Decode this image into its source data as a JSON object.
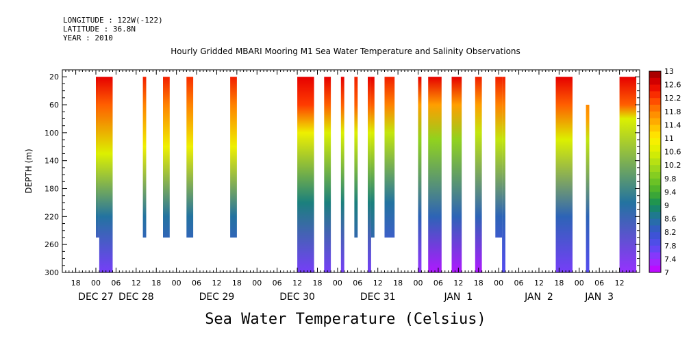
{
  "header": {
    "longitude": "LONGITUDE : 122W(-122)",
    "latitude": "LATITUDE : 36.8N",
    "year": "YEAR : 2010"
  },
  "chart_data": {
    "type": "heatmap",
    "title": "Hourly Gridded MBARI Mooring M1 Sea Water Temperature and Salinity Observations",
    "xlabel": "Sea Water Temperature (Celsius)",
    "ylabel": "DEPTH (m)",
    "x_unit": "hours since DEC 27 00:00",
    "xlim": [
      -10,
      162
    ],
    "ylim": [
      300,
      10
    ],
    "y_ticks": [
      20,
      60,
      100,
      140,
      180,
      220,
      260,
      300
    ],
    "x_hour_ticks": [
      {
        "h": -6,
        "label": "18"
      },
      {
        "h": 0,
        "label": "00"
      },
      {
        "h": 6,
        "label": "06"
      },
      {
        "h": 12,
        "label": "12"
      },
      {
        "h": 18,
        "label": "18"
      },
      {
        "h": 24,
        "label": "00"
      },
      {
        "h": 30,
        "label": "06"
      },
      {
        "h": 36,
        "label": "12"
      },
      {
        "h": 42,
        "label": "18"
      },
      {
        "h": 48,
        "label": "00"
      },
      {
        "h": 54,
        "label": "06"
      },
      {
        "h": 60,
        "label": "12"
      },
      {
        "h": 66,
        "label": "18"
      },
      {
        "h": 72,
        "label": "00"
      },
      {
        "h": 78,
        "label": "06"
      },
      {
        "h": 84,
        "label": "12"
      },
      {
        "h": 90,
        "label": "18"
      },
      {
        "h": 96,
        "label": "00"
      },
      {
        "h": 102,
        "label": "06"
      },
      {
        "h": 108,
        "label": "12"
      },
      {
        "h": 114,
        "label": "18"
      },
      {
        "h": 120,
        "label": "00"
      },
      {
        "h": 126,
        "label": "06"
      },
      {
        "h": 132,
        "label": "12"
      },
      {
        "h": 138,
        "label": "18"
      },
      {
        "h": 144,
        "label": "00"
      },
      {
        "h": 150,
        "label": "06"
      },
      {
        "h": 156,
        "label": "12"
      }
    ],
    "x_date_labels": [
      {
        "h": 0,
        "label": "DEC 27"
      },
      {
        "h": 12,
        "label": "DEC 28"
      },
      {
        "h": 36,
        "label": "DEC 29"
      },
      {
        "h": 60,
        "label": "DEC 30"
      },
      {
        "h": 84,
        "label": "DEC 31"
      },
      {
        "h": 108,
        "label": "JAN  1"
      },
      {
        "h": 132,
        "label": "JAN  2"
      },
      {
        "h": 150,
        "label": "JAN  3"
      }
    ],
    "colorbar": {
      "min": 7,
      "max": 13,
      "step": 0.2,
      "labels": [
        "13",
        "12.6",
        "12.2",
        "11.8",
        "11.4",
        "11",
        "10.6",
        "10.2",
        "9.8",
        "9.4",
        "9",
        "8.6",
        "8.2",
        "7.8",
        "7.4",
        "7"
      ],
      "label_values": [
        13,
        12.6,
        12.2,
        11.8,
        11.4,
        11,
        10.6,
        10.2,
        9.8,
        9.4,
        9,
        8.6,
        8.2,
        7.8,
        7.4,
        7
      ]
    },
    "profile_coverage_note": "depth range of each observed column",
    "columns": [
      {
        "h0": 0,
        "h1": 1,
        "dmax": 250
      },
      {
        "h1": 5,
        "h0": 1,
        "dmax": 300
      },
      {
        "h0": 14,
        "h1": 15,
        "dmax": 250
      },
      {
        "h0": 20,
        "h1": 22,
        "dmax": 250
      },
      {
        "h0": 27,
        "h1": 29,
        "dmax": 250
      },
      {
        "h0": 40,
        "h1": 42,
        "dmax": 250
      },
      {
        "h0": 60,
        "h1": 65,
        "dmax": 300
      },
      {
        "h0": 68,
        "h1": 70,
        "dmax": 300
      },
      {
        "h0": 73,
        "h1": 74,
        "dmax": 300
      },
      {
        "h0": 77,
        "h1": 78,
        "dmax": 250
      },
      {
        "h0": 81,
        "h1": 82,
        "dmax": 300
      },
      {
        "h0": 82,
        "h1": 83,
        "dmax": 250
      },
      {
        "h0": 86,
        "h1": 89,
        "dmax": 250
      },
      {
        "h0": 96,
        "h1": 97,
        "dmax": 300
      },
      {
        "h0": 99,
        "h1": 103,
        "dmax": 300
      },
      {
        "h0": 106,
        "h1": 109,
        "dmax": 300
      },
      {
        "h0": 113,
        "h1": 115,
        "dmax": 300
      },
      {
        "h0": 119,
        "h1": 121,
        "dmax": 250
      },
      {
        "h0": 121,
        "h1": 122,
        "dmax": 300
      },
      {
        "h0": 137,
        "h1": 142,
        "dmax": 300
      },
      {
        "h0": 146,
        "h1": 147,
        "dmin": 60,
        "dmax": 300
      },
      {
        "h0": 156,
        "h1": 161,
        "dmax": 300
      }
    ],
    "column_profiles": [
      {
        "top": 12.6,
        "d1": 60,
        "v1": 12.0,
        "d2": 130,
        "v2": 10.6,
        "d3": 220,
        "v3": 8.6,
        "bot": 7.6
      },
      {
        "top": 12.6,
        "d1": 60,
        "v1": 12.0,
        "d2": 130,
        "v2": 10.6,
        "d3": 220,
        "v3": 8.6,
        "bot": 7.6
      },
      {
        "top": 12.4,
        "d1": 60,
        "v1": 11.8,
        "d2": 120,
        "v2": 10.8,
        "d3": 220,
        "v3": 8.6,
        "bot": 8.0
      },
      {
        "top": 12.4,
        "d1": 60,
        "v1": 11.8,
        "d2": 120,
        "v2": 10.8,
        "d3": 220,
        "v3": 8.6,
        "bot": 8.0
      },
      {
        "top": 12.3,
        "d1": 60,
        "v1": 11.8,
        "d2": 120,
        "v2": 10.8,
        "d3": 220,
        "v3": 8.6,
        "bot": 8.0
      },
      {
        "top": 12.4,
        "d1": 60,
        "v1": 11.8,
        "d2": 120,
        "v2": 10.8,
        "d3": 220,
        "v3": 8.6,
        "bot": 8.0
      },
      {
        "top": 12.6,
        "d1": 60,
        "v1": 12.2,
        "d2": 100,
        "v2": 10.8,
        "d3": 200,
        "v3": 8.8,
        "bot": 7.6
      },
      {
        "top": 12.6,
        "d1": 60,
        "v1": 12.0,
        "d2": 100,
        "v2": 10.6,
        "d3": 200,
        "v3": 8.8,
        "bot": 7.6
      },
      {
        "top": 12.6,
        "d1": 60,
        "v1": 12.0,
        "d2": 100,
        "v2": 10.6,
        "d3": 200,
        "v3": 8.8,
        "bot": 7.6
      },
      {
        "top": 12.4,
        "d1": 60,
        "v1": 12.0,
        "d2": 100,
        "v2": 10.6,
        "d3": 200,
        "v3": 8.8,
        "bot": 8.0
      },
      {
        "top": 12.6,
        "d1": 60,
        "v1": 12.0,
        "d2": 100,
        "v2": 10.6,
        "d3": 200,
        "v3": 8.8,
        "bot": 7.6
      },
      {
        "top": 12.6,
        "d1": 60,
        "v1": 12.0,
        "d2": 100,
        "v2": 10.6,
        "d3": 200,
        "v3": 8.8,
        "bot": 8.0
      },
      {
        "top": 12.4,
        "d1": 60,
        "v1": 11.8,
        "d2": 100,
        "v2": 10.4,
        "d3": 200,
        "v3": 8.6,
        "bot": 7.8
      },
      {
        "top": 12.6,
        "d1": 60,
        "v1": 11.6,
        "d2": 110,
        "v2": 10.0,
        "d3": 220,
        "v3": 8.4,
        "bot": 7.4
      },
      {
        "top": 12.6,
        "d1": 60,
        "v1": 11.6,
        "d2": 110,
        "v2": 10.0,
        "d3": 220,
        "v3": 8.4,
        "bot": 7.2
      },
      {
        "top": 12.6,
        "d1": 60,
        "v1": 11.6,
        "d2": 110,
        "v2": 10.0,
        "d3": 220,
        "v3": 8.4,
        "bot": 7.2
      },
      {
        "top": 12.4,
        "d1": 60,
        "v1": 11.6,
        "d2": 100,
        "v2": 10.4,
        "d3": 220,
        "v3": 8.4,
        "bot": 7.2
      },
      {
        "top": 12.4,
        "d1": 60,
        "v1": 11.8,
        "d2": 110,
        "v2": 10.4,
        "d3": 220,
        "v3": 8.4,
        "bot": 7.8
      },
      {
        "top": 12.4,
        "d1": 60,
        "v1": 11.8,
        "d2": 110,
        "v2": 10.4,
        "d3": 220,
        "v3": 8.4,
        "bot": 7.8
      },
      {
        "top": 12.6,
        "d1": 60,
        "v1": 12.0,
        "d2": 110,
        "v2": 10.6,
        "d3": 220,
        "v3": 8.4,
        "bot": 7.6
      },
      {
        "top": 12.0,
        "d1": 80,
        "v1": 11.6,
        "d2": 110,
        "v2": 10.4,
        "d3": 220,
        "v3": 8.4,
        "bot": 7.8
      },
      {
        "top": 12.6,
        "d1": 60,
        "v1": 12.0,
        "d2": 80,
        "v2": 10.6,
        "d3": 200,
        "v3": 8.6,
        "bot": 7.4
      }
    ]
  }
}
